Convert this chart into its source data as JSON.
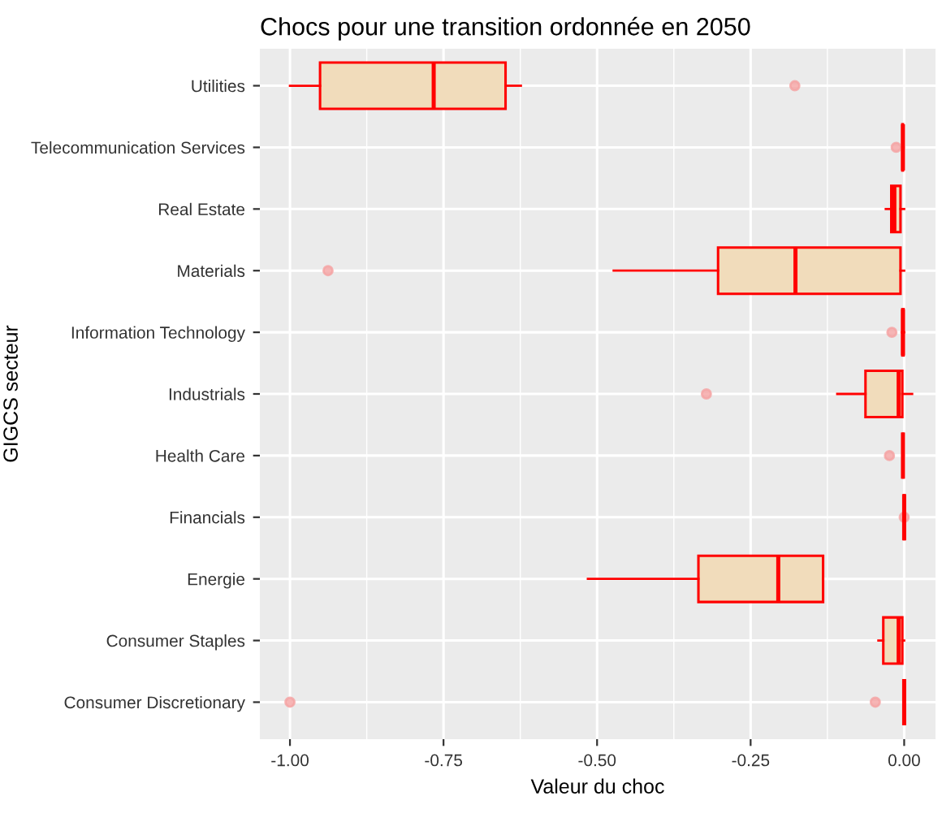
{
  "chart_data": {
    "type": "box",
    "orientation": "horizontal",
    "title": "Chocs pour une transition ordonnée en 2050",
    "xlabel": "Valeur du choc",
    "ylabel": "GIGCS secteur",
    "categories": [
      "Utilities",
      "Telecommunication Services",
      "Real Estate",
      "Materials",
      "Information Technology",
      "Industrials",
      "Health Care",
      "Financials",
      "Energie",
      "Consumer Staples",
      "Consumer Discretionary"
    ],
    "series": [
      {
        "color": "#ff0000",
        "boxes": [
          {
            "low": -1.0,
            "q1": -0.951,
            "median": -0.766,
            "q3": -0.649,
            "high": -0.624,
            "outliers": [
              -0.178
            ]
          },
          {
            "low": -0.003,
            "q1": -0.003,
            "median": -0.002,
            "q3": -0.002,
            "high": -0.001,
            "outliers": [
              -0.013
            ]
          },
          {
            "low": -0.03,
            "q1": -0.021,
            "median": -0.016,
            "q3": -0.006,
            "high": 0.0
          },
          {
            "low": -0.473,
            "q1": -0.303,
            "median": -0.177,
            "q3": -0.006,
            "high": 0.0,
            "outliers": [
              -0.938
            ]
          },
          {
            "low": -0.004,
            "q1": -0.003,
            "median": -0.002,
            "q3": -0.001,
            "high": 0.0,
            "outliers": [
              -0.02
            ]
          },
          {
            "low": -0.109,
            "q1": -0.063,
            "median": -0.009,
            "q3": -0.003,
            "high": 0.013,
            "outliers": [
              -0.322
            ]
          },
          {
            "low": -0.002,
            "q1": -0.002,
            "median": -0.002,
            "q3": -0.002,
            "high": -0.002,
            "outliers": [
              -0.024
            ]
          },
          {
            "low": 0.0,
            "q1": 0.0,
            "median": 0.0,
            "q3": 0.0,
            "high": 0.0,
            "outliers": [
              0.0
            ]
          },
          {
            "low": -0.515,
            "q1": -0.335,
            "median": -0.205,
            "q3": -0.132,
            "high": -0.132
          },
          {
            "low": -0.042,
            "q1": -0.034,
            "median": -0.009,
            "q3": -0.003,
            "high": 0.0
          },
          {
            "low": 0.0,
            "q1": 0.0,
            "median": 0.0,
            "q3": 0.0,
            "high": 0.0,
            "outliers": [
              -1.0,
              -0.047
            ]
          }
        ]
      }
    ],
    "xlim": [
      -1.049,
      0.051
    ],
    "xticks": [
      {
        "value": -1.0,
        "label": "-1.00"
      },
      {
        "value": -0.75,
        "label": "-0.75"
      },
      {
        "value": -0.5,
        "label": "-0.50"
      },
      {
        "value": -0.25,
        "label": "-0.25"
      },
      {
        "value": 0.0,
        "label": "0.00"
      }
    ],
    "grid": true,
    "legend": false
  }
}
